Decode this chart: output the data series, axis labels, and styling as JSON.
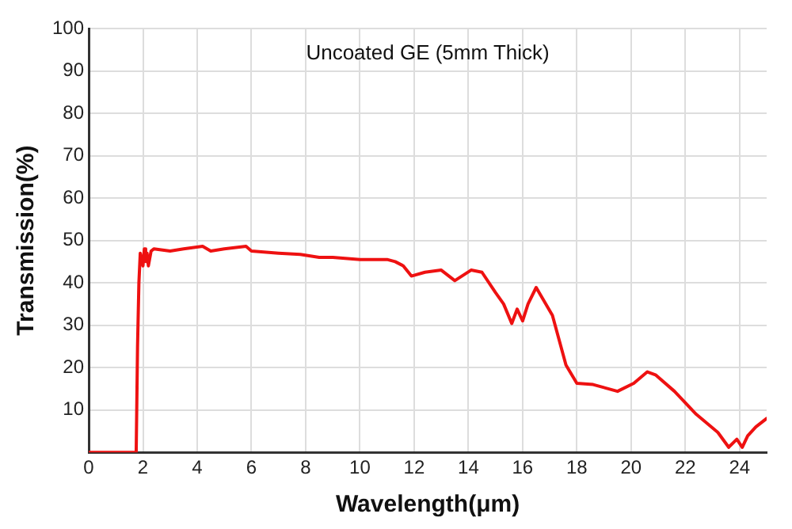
{
  "chart_data": {
    "type": "line",
    "title": "Uncoated GE (5mm Thick)",
    "xlabel": "Wavelength(μm)",
    "ylabel": "Transmission(%)",
    "series": [
      {
        "color": "#ee1111",
        "x": [
          0,
          1.75,
          1.8,
          1.85,
          1.9,
          2.0,
          2.05,
          2.1,
          2.15,
          2.2,
          2.3,
          2.4,
          3.0,
          3.5,
          4.2,
          4.5,
          5.0,
          5.8,
          6.0,
          7.0,
          7.8,
          8.5,
          9.0,
          10.0,
          11.0,
          11.3,
          11.6,
          11.9,
          12.4,
          13.0,
          13.5,
          14.1,
          14.5,
          15.0,
          15.3,
          15.6,
          15.8,
          16.0,
          16.2,
          16.5,
          17.1,
          17.6,
          18.0,
          18.6,
          19.5,
          20.1,
          20.6,
          20.9,
          21.6,
          22.4,
          23.2,
          23.6,
          23.9,
          24.1,
          24.3,
          24.6,
          25.0
        ],
        "values": [
          0,
          0,
          25,
          40,
          47,
          44,
          48,
          45,
          47,
          44,
          47.5,
          48,
          47.5,
          48,
          48.6,
          47.5,
          48,
          48.6,
          47.5,
          47,
          46.7,
          46,
          46,
          45.5,
          45.5,
          45,
          44,
          41.6,
          42.5,
          43,
          40.5,
          43,
          42.5,
          37.7,
          35,
          30.4,
          33.8,
          31,
          35,
          38.9,
          32.3,
          20.6,
          16.3,
          16,
          14.4,
          16.3,
          19,
          18.3,
          14.4,
          9,
          4.7,
          1.2,
          3.1,
          1.2,
          3.9,
          6,
          8
        ]
      }
    ],
    "xlim": [
      0,
      25
    ],
    "xticks": [
      0,
      2,
      4,
      6,
      8,
      10,
      12,
      14,
      16,
      18,
      20,
      22,
      24
    ],
    "ylim": [
      0,
      100
    ],
    "yticks": [
      {
        "value": 0,
        "label": null
      },
      10,
      20,
      30,
      40,
      50,
      60,
      70,
      80,
      90,
      100
    ],
    "grid": true,
    "legend": false,
    "marker": "none",
    "line_style": "solid"
  }
}
